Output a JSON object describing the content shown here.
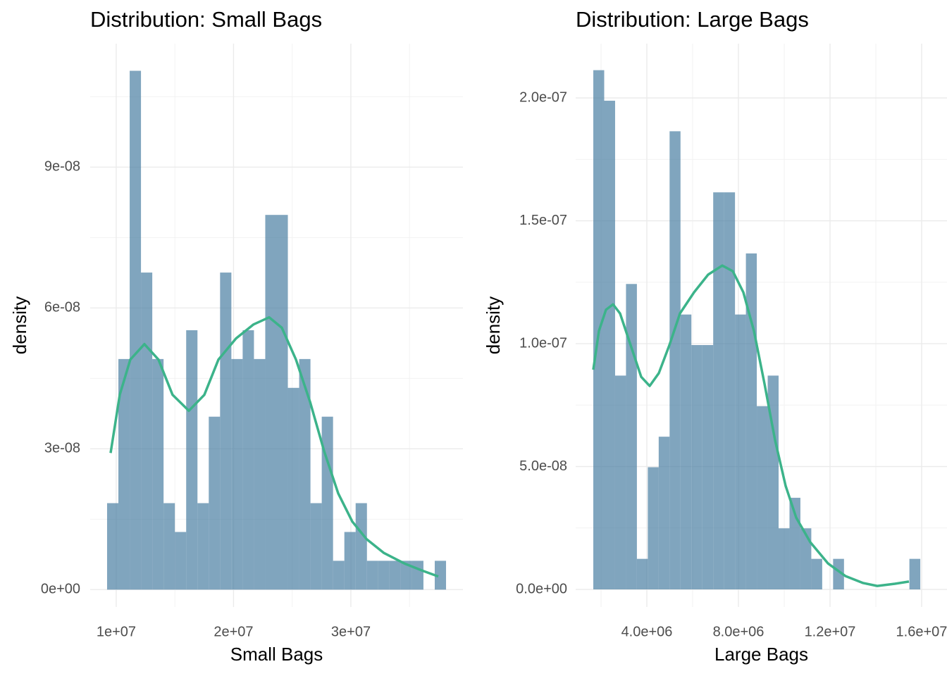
{
  "chart_data": [
    {
      "type": "histogram",
      "title": "Distribution: Small Bags",
      "xlabel": "Small Bags",
      "ylabel": "density",
      "color": "#4a7fa3",
      "curve_color": "#3cb38a",
      "bins": [
        9220000,
        10183000,
        11146000,
        12109000,
        13072000,
        14035000,
        14998000,
        15961000,
        16924000,
        17887000,
        18850000,
        19813000,
        20776000,
        21739000,
        22702000,
        23665000,
        24628000,
        25591000,
        26554000,
        27517000,
        28480000,
        29443000,
        30406000,
        31369000,
        32332000,
        33295000,
        34258000,
        35221000,
        36184000,
        37147000,
        38110000
      ],
      "values": [
        1.842e-08,
        4.912e-08,
        1.1052e-07,
        6.754e-08,
        4.912e-08,
        1.842e-08,
        1.228e-08,
        5.526e-08,
        1.842e-08,
        3.684e-08,
        6.754e-08,
        4.912e-08,
        5.526e-08,
        4.912e-08,
        7.982e-08,
        7.982e-08,
        4.298e-08,
        4.912e-08,
        1.842e-08,
        3.684e-08,
        6.14e-09,
        1.228e-08,
        1.842e-08,
        6.14e-09,
        6.14e-09,
        6.14e-09,
        6.14e-09,
        6.14e-09,
        0,
        6.14e-09
      ],
      "curve": {
        "x": [
          9520000,
          10300000,
          11200000,
          12400000,
          13600000,
          14800000,
          16190000,
          17510000,
          18710000,
          20210000,
          21710000,
          23030000,
          24110000,
          25320000,
          26520000,
          27720000,
          28920000,
          30120000,
          31320000,
          32820000,
          34620000,
          36130000,
          37450000
        ],
        "y": [
          2.91e-08,
          4.15e-08,
          4.9e-08,
          5.23e-08,
          4.9e-08,
          4.15e-08,
          3.81e-08,
          4.15e-08,
          4.9e-08,
          5.35e-08,
          5.65e-08,
          5.8e-08,
          5.58e-08,
          4.9e-08,
          4e-08,
          2.95e-08,
          2.05e-08,
          1.45e-08,
          1.08e-08,
          7.8e-09,
          5.5e-09,
          4e-09,
          2.8e-09
        ]
      },
      "xlim": [
        7780000,
        39550000
      ],
      "ylim": [
        -3.7e-09,
        1.163e-07
      ],
      "xticks": [
        {
          "value": 10000000,
          "label": "1e+07"
        },
        {
          "value": 20000000,
          "label": "2e+07"
        },
        {
          "value": 30000000,
          "label": "3e+07"
        }
      ],
      "yticks": [
        {
          "value": 0,
          "label": "0e+00"
        },
        {
          "value": 3e-08,
          "label": "3e-08"
        },
        {
          "value": 6e-08,
          "label": "6e-08"
        },
        {
          "value": 9e-08,
          "label": "9e-08"
        }
      ],
      "xminor": [
        15000000,
        25000000,
        35000000
      ],
      "yminor": [
        1.5e-08,
        4.5e-08,
        7.5e-08,
        1.05e-07
      ],
      "grid": true
    },
    {
      "type": "histogram",
      "title": "Distribution: Large Bags",
      "xlabel": "Large Bags",
      "ylabel": "density",
      "color": "#4a7fa3",
      "curve_color": "#3cb38a",
      "bins": [
        1662000,
        2138000,
        2614000,
        3090000,
        3566000,
        4042000,
        4518000,
        4994000,
        5470000,
        5946000,
        6422000,
        6898000,
        7374000,
        7850000,
        8326000,
        8802000,
        9278000,
        9754000,
        10230000,
        10706000,
        11182000,
        11658000,
        12134000,
        12610000,
        13086000,
        13562000,
        14038000,
        14514000,
        14990000,
        15466000,
        15942000
      ],
      "values": [
        2.1131e-07,
        1.9888e-07,
        8.701e-08,
        1.243e-07,
        1.243e-08,
        4.972e-08,
        6.215e-08,
        1.8645e-07,
        1.1187e-07,
        9.944e-08,
        9.944e-08,
        1.6159e-07,
        1.6159e-07,
        1.1187e-07,
        1.3673e-07,
        7.458e-08,
        8.701e-08,
        2.486e-08,
        3.729e-08,
        2.486e-08,
        1.243e-08,
        0,
        1.243e-08,
        0,
        0,
        0,
        0,
        0,
        0,
        1.243e-08
      ],
      "curve": {
        "x": [
          1662000,
          1908000,
          2215000,
          2523000,
          2831000,
          3292000,
          3754000,
          4123000,
          4523000,
          4985000,
          5446000,
          6062000,
          6677000,
          7292000,
          7754000,
          8215000,
          8677000,
          9138000,
          9600000,
          10062000,
          10523000,
          11138000,
          11908000,
          12677000,
          13446000,
          14062000,
          14831000,
          15446000
        ],
        "y": [
          8.94e-08,
          1.052e-07,
          1.138e-07,
          1.16e-07,
          1.123e-07,
          9.94e-08,
          8.65e-08,
          8.28e-08,
          8.8e-08,
          9.94e-08,
          1.123e-07,
          1.209e-07,
          1.281e-07,
          1.318e-07,
          1.295e-07,
          1.209e-07,
          1.052e-07,
          8.37e-08,
          6.07e-08,
          4.21e-08,
          2.92e-08,
          1.92e-08,
          1.06e-08,
          5.4e-09,
          2.6e-09,
          1.4e-09,
          2.3e-09,
          3.2e-09
        ]
      },
      "xlim": [
        892000,
        17108000
      ],
      "ylim": [
        -7.16e-09,
        2.221e-07
      ],
      "xticks": [
        {
          "value": 4000000,
          "label": "4.0e+06"
        },
        {
          "value": 8000000,
          "label": "8.0e+06"
        },
        {
          "value": 12000000,
          "label": "1.2e+07"
        },
        {
          "value": 16000000,
          "label": "1.6e+07"
        }
      ],
      "yticks": [
        {
          "value": 0,
          "label": "0.0e+00"
        },
        {
          "value": 5e-08,
          "label": "5.0e-08"
        },
        {
          "value": 1e-07,
          "label": "1.0e-07"
        },
        {
          "value": 1.5e-07,
          "label": "1.5e-07"
        },
        {
          "value": 2e-07,
          "label": "2.0e-07"
        }
      ],
      "xminor": [
        2000000,
        6000000,
        10000000,
        14000000
      ],
      "yminor": [
        2.5e-08,
        7.5e-08,
        1.25e-07,
        1.75e-07
      ],
      "grid": true
    }
  ]
}
